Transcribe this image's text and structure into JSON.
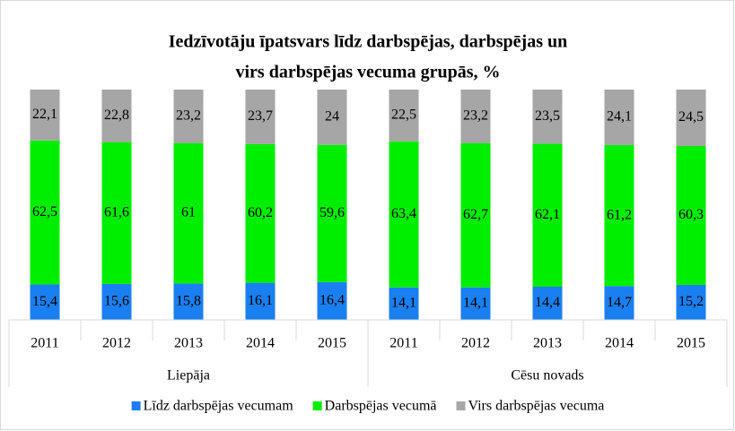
{
  "chart_data": {
    "type": "stacked_bar",
    "title": [
      "Iedzīvotāju  īpatsvars līdz darbspējas, darbspējas un",
      "virs darbspējas vecuma grupās, %"
    ],
    "groups": [
      {
        "name": "Liepāja",
        "categories": [
          "2011",
          "2012",
          "2013",
          "2014",
          "2015"
        ]
      },
      {
        "name": "Cēsu novads",
        "categories": [
          "2011",
          "2012",
          "2013",
          "2014",
          "2015"
        ]
      }
    ],
    "ylim": [
      0,
      100
    ],
    "series": [
      {
        "name": "Līdz darbspējas vecumam",
        "color": "#1a7ff0",
        "values": [
          15.4,
          15.6,
          15.8,
          16.1,
          16.4,
          14.1,
          14.1,
          14.4,
          14.7,
          15.2
        ],
        "value_labels": [
          "15,4",
          "15,6",
          "15,8",
          "16,1",
          "16,4",
          "14,1",
          "14,1",
          "14,4",
          "14,7",
          "15,2"
        ]
      },
      {
        "name": "Darbspējas vecumā",
        "color": "#00ee00",
        "values": [
          62.5,
          61.6,
          61,
          60.2,
          59.6,
          63.4,
          62.7,
          62.1,
          61.2,
          60.3
        ],
        "value_labels": [
          "62,5",
          "61,6",
          "61",
          "60,2",
          "59,6",
          "63,4",
          "62,7",
          "62,1",
          "61,2",
          "60,3"
        ]
      },
      {
        "name": "Virs darbspējas vecuma",
        "color": "#a6a6a6",
        "values": [
          22.1,
          22.8,
          23.2,
          23.7,
          24,
          22.5,
          23.2,
          23.5,
          24.1,
          24.5
        ],
        "value_labels": [
          "22,1",
          "22,8",
          "23,2",
          "23,7",
          "24",
          "22,5",
          "23,2",
          "23,5",
          "24,1",
          "24,5"
        ]
      }
    ],
    "legend": "bottom"
  }
}
